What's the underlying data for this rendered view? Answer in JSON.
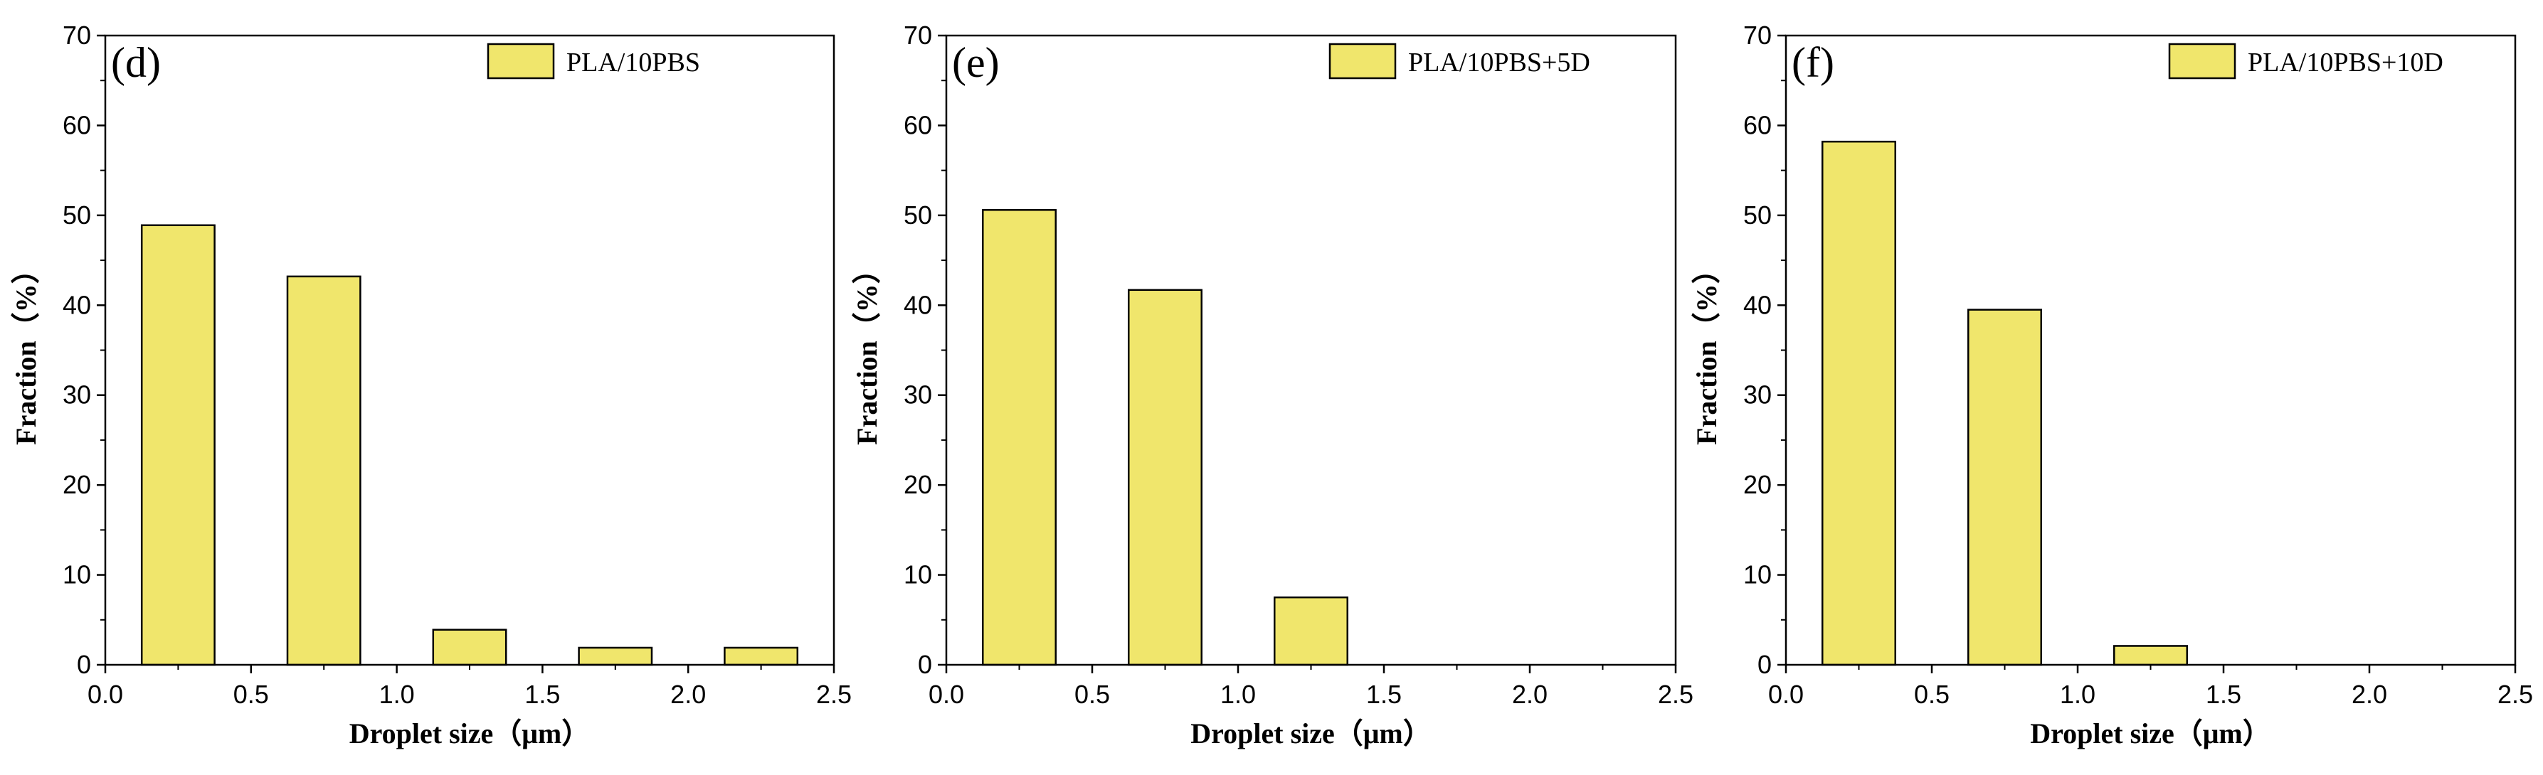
{
  "colors": {
    "bar_fill": "#f0e66c",
    "bar_stroke": "#000000",
    "axis": "#000000"
  },
  "chart_data": [
    {
      "type": "bar",
      "panel_label": "(d)",
      "legend": "PLA/10PBS",
      "legend_position": "top-right",
      "xlabel": "Droplet size（μm）",
      "ylabel": "Fraction（%）",
      "xlim": [
        0,
        2.5
      ],
      "ylim": [
        0,
        70
      ],
      "x_ticks": [
        "0.0",
        "0.5",
        "1.0",
        "1.5",
        "2.0",
        "2.5"
      ],
      "y_ticks": [
        "0",
        "10",
        "20",
        "30",
        "40",
        "50",
        "60",
        "70"
      ],
      "x": [
        0.25,
        0.75,
        1.25,
        1.75,
        2.25
      ],
      "bar_width": 0.25,
      "values": [
        48.9,
        43.2,
        3.9,
        1.9,
        1.9
      ]
    },
    {
      "type": "bar",
      "panel_label": "(e)",
      "legend": "PLA/10PBS+5D",
      "legend_position": "top-right",
      "xlabel": "Droplet size（μm）",
      "ylabel": "Fraction（%）",
      "xlim": [
        0,
        2.5
      ],
      "ylim": [
        0,
        70
      ],
      "x_ticks": [
        "0.0",
        "0.5",
        "1.0",
        "1.5",
        "2.0",
        "2.5"
      ],
      "y_ticks": [
        "0",
        "10",
        "20",
        "30",
        "40",
        "50",
        "60",
        "70"
      ],
      "x": [
        0.25,
        0.75,
        1.25
      ],
      "bar_width": 0.25,
      "values": [
        50.6,
        41.7,
        7.5
      ]
    },
    {
      "type": "bar",
      "panel_label": "(f)",
      "legend": "PLA/10PBS+10D",
      "legend_position": "top-right",
      "xlabel": "Droplet size（μm）",
      "ylabel": "Fraction（%）",
      "xlim": [
        0,
        2.5
      ],
      "ylim": [
        0,
        70
      ],
      "x_ticks": [
        "0.0",
        "0.5",
        "1.0",
        "1.5",
        "2.0",
        "2.5"
      ],
      "y_ticks": [
        "0",
        "10",
        "20",
        "30",
        "40",
        "50",
        "60",
        "70"
      ],
      "x": [
        0.25,
        0.75,
        1.25
      ],
      "bar_width": 0.25,
      "values": [
        58.2,
        39.5,
        2.1
      ]
    }
  ]
}
